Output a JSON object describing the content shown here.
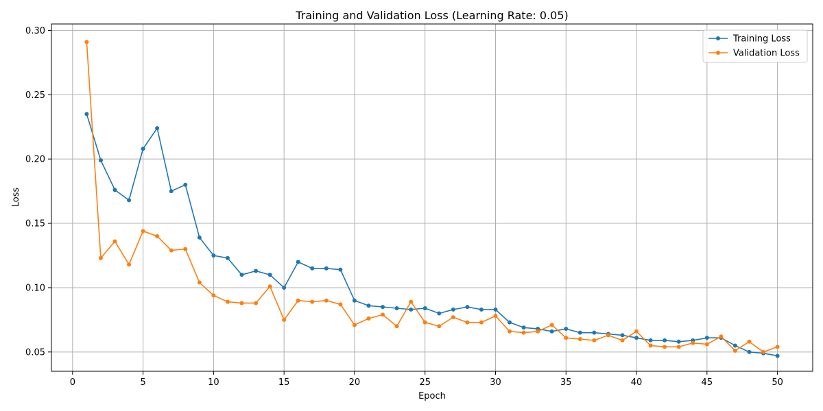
{
  "chart_data": {
    "type": "line",
    "title": "Training and Validation Loss (Learning Rate: 0.05)",
    "xlabel": "Epoch",
    "ylabel": "Loss",
    "xlim": [
      -1.5,
      52.5
    ],
    "ylim": [
      0.035,
      0.305
    ],
    "xticks": [
      0,
      5,
      10,
      15,
      20,
      25,
      30,
      35,
      40,
      45,
      50
    ],
    "yticks": [
      0.05,
      0.1,
      0.15,
      0.2,
      0.25,
      0.3
    ],
    "ytick_labels": [
      "0.05",
      "0.10",
      "0.15",
      "0.20",
      "0.25",
      "0.30"
    ],
    "grid": true,
    "legend_position": "top-right",
    "x": [
      1,
      2,
      3,
      4,
      5,
      6,
      7,
      8,
      9,
      10,
      11,
      12,
      13,
      14,
      15,
      16,
      17,
      18,
      19,
      20,
      21,
      22,
      23,
      24,
      25,
      26,
      27,
      28,
      29,
      30,
      31,
      32,
      33,
      34,
      35,
      36,
      37,
      38,
      39,
      40,
      41,
      42,
      43,
      44,
      45,
      46,
      47,
      48,
      49,
      50
    ],
    "series": [
      {
        "name": "Training Loss",
        "color": "#1f77b4",
        "values": [
          0.235,
          0.199,
          0.176,
          0.168,
          0.208,
          0.224,
          0.175,
          0.18,
          0.139,
          0.125,
          0.123,
          0.11,
          0.113,
          0.11,
          0.1,
          0.12,
          0.115,
          0.115,
          0.114,
          0.09,
          0.086,
          0.085,
          0.084,
          0.083,
          0.084,
          0.08,
          0.083,
          0.085,
          0.083,
          0.083,
          0.073,
          0.069,
          0.068,
          0.066,
          0.068,
          0.065,
          0.065,
          0.064,
          0.063,
          0.061,
          0.059,
          0.059,
          0.058,
          0.059,
          0.061,
          0.061,
          0.055,
          0.05,
          0.049,
          0.047
        ]
      },
      {
        "name": "Validation Loss",
        "color": "#ff7f0e",
        "values": [
          0.291,
          0.123,
          0.136,
          0.118,
          0.144,
          0.14,
          0.129,
          0.13,
          0.104,
          0.094,
          0.089,
          0.088,
          0.088,
          0.101,
          0.075,
          0.09,
          0.089,
          0.09,
          0.087,
          0.071,
          0.076,
          0.079,
          0.07,
          0.089,
          0.073,
          0.07,
          0.077,
          0.073,
          0.073,
          0.078,
          0.066,
          0.065,
          0.066,
          0.071,
          0.061,
          0.06,
          0.059,
          0.063,
          0.059,
          0.066,
          0.055,
          0.054,
          0.054,
          0.057,
          0.056,
          0.062,
          0.051,
          0.058,
          0.05,
          0.054
        ]
      }
    ]
  }
}
